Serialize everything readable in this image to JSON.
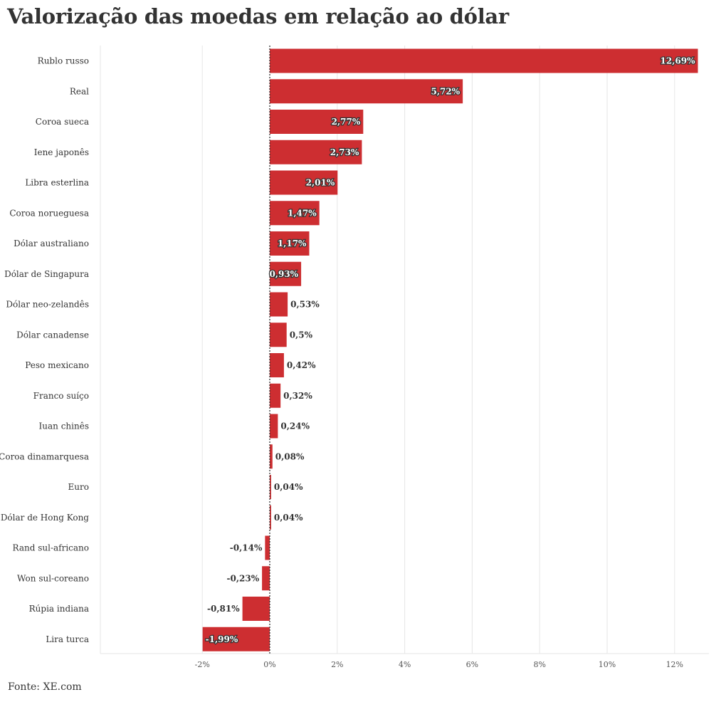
{
  "title": "Valorização das moedas em relação ao dólar",
  "source": "Fonte: XE.com",
  "colors": {
    "bar": "#cd2e31",
    "grid": "#e6e6e6",
    "text": "#333333"
  },
  "chart_data": {
    "type": "bar",
    "orientation": "horizontal",
    "title": "Valorização das moedas em relação ao dólar",
    "xlabel": "",
    "ylabel": "",
    "xlim": [
      -5,
      13
    ],
    "xticks": [
      -2,
      0,
      2,
      4,
      6,
      8,
      10,
      12
    ],
    "xtick_labels": [
      "-2%",
      "0%",
      "2%",
      "4%",
      "6%",
      "8%",
      "10%",
      "12%"
    ],
    "grid": true,
    "categories": [
      "Rublo russo",
      "Real",
      "Coroa sueca",
      "Iene japonês",
      "Libra esterlina",
      "Coroa norueguesa",
      "Dólar australiano",
      "Dólar de Singapura",
      "Dólar neo-zelandês",
      "Dólar canadense",
      "Peso mexicano",
      "Franco suíço",
      "Iuan chinês",
      "Coroa dinamarquesa",
      "Euro",
      "Dólar de Hong Kong",
      "Rand sul-africano",
      "Won sul-coreano",
      "Rúpia indiana",
      "Lira turca"
    ],
    "values": [
      12.69,
      5.72,
      2.77,
      2.73,
      2.01,
      1.47,
      1.17,
      0.93,
      0.53,
      0.5,
      0.42,
      0.32,
      0.24,
      0.08,
      0.04,
      0.04,
      -0.14,
      -0.23,
      -0.81,
      -1.99
    ],
    "value_labels": [
      "12,69%",
      "5,72%",
      "2,77%",
      "2,73%",
      "2,01%",
      "1,47%",
      "1,17%",
      "0,93%",
      "0,53%",
      "0,5%",
      "0,42%",
      "0,32%",
      "0,24%",
      "0,08%",
      "0,04%",
      "0,04%",
      "-0,14%",
      "-0,23%",
      "-0,81%",
      "-1,99%"
    ]
  }
}
